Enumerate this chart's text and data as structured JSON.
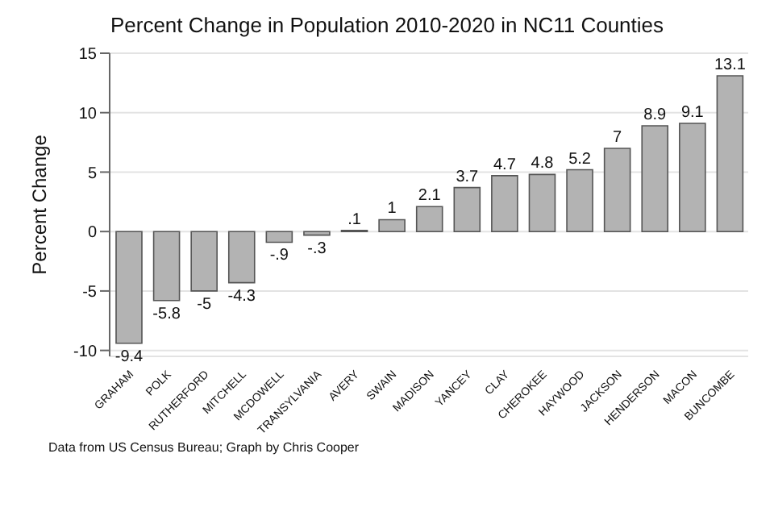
{
  "chart_data": {
    "type": "bar",
    "title": "Percent Change in Population 2010-2020 in NC11 Counties",
    "ylabel": "Percent Change",
    "categories": [
      "GRAHAM",
      "POLK",
      "RUTHERFORD",
      "MITCHELL",
      "MCDOWELL",
      "TRANSYLVANIA",
      "AVERY",
      "SWAIN",
      "MADISON",
      "YANCEY",
      "CLAY",
      "CHEROKEE",
      "HAYWOOD",
      "JACKSON",
      "HENDERSON",
      "MACON",
      "BUNCOMBE"
    ],
    "values": [
      -9.4,
      -5.8,
      -5,
      -4.3,
      -0.9,
      -0.3,
      0.1,
      1,
      2.1,
      3.7,
      4.7,
      4.8,
      5.2,
      7,
      8.9,
      9.1,
      13.1
    ],
    "value_labels": [
      "-9.4",
      "-5.8",
      "-5",
      "-4.3",
      "-.9",
      "-.3",
      ".1",
      "1",
      "2.1",
      "3.7",
      "4.7",
      "4.8",
      "5.2",
      "7",
      "8.9",
      "9.1",
      "13.1"
    ],
    "color": "#b3b3b3",
    "ylim": [
      -10.5,
      15
    ],
    "yticks": [
      -10,
      -5,
      0,
      5,
      10,
      15
    ],
    "grid": "y",
    "annotations": [
      "Data from US Census Bureau; Graph by Chris Cooper"
    ]
  }
}
